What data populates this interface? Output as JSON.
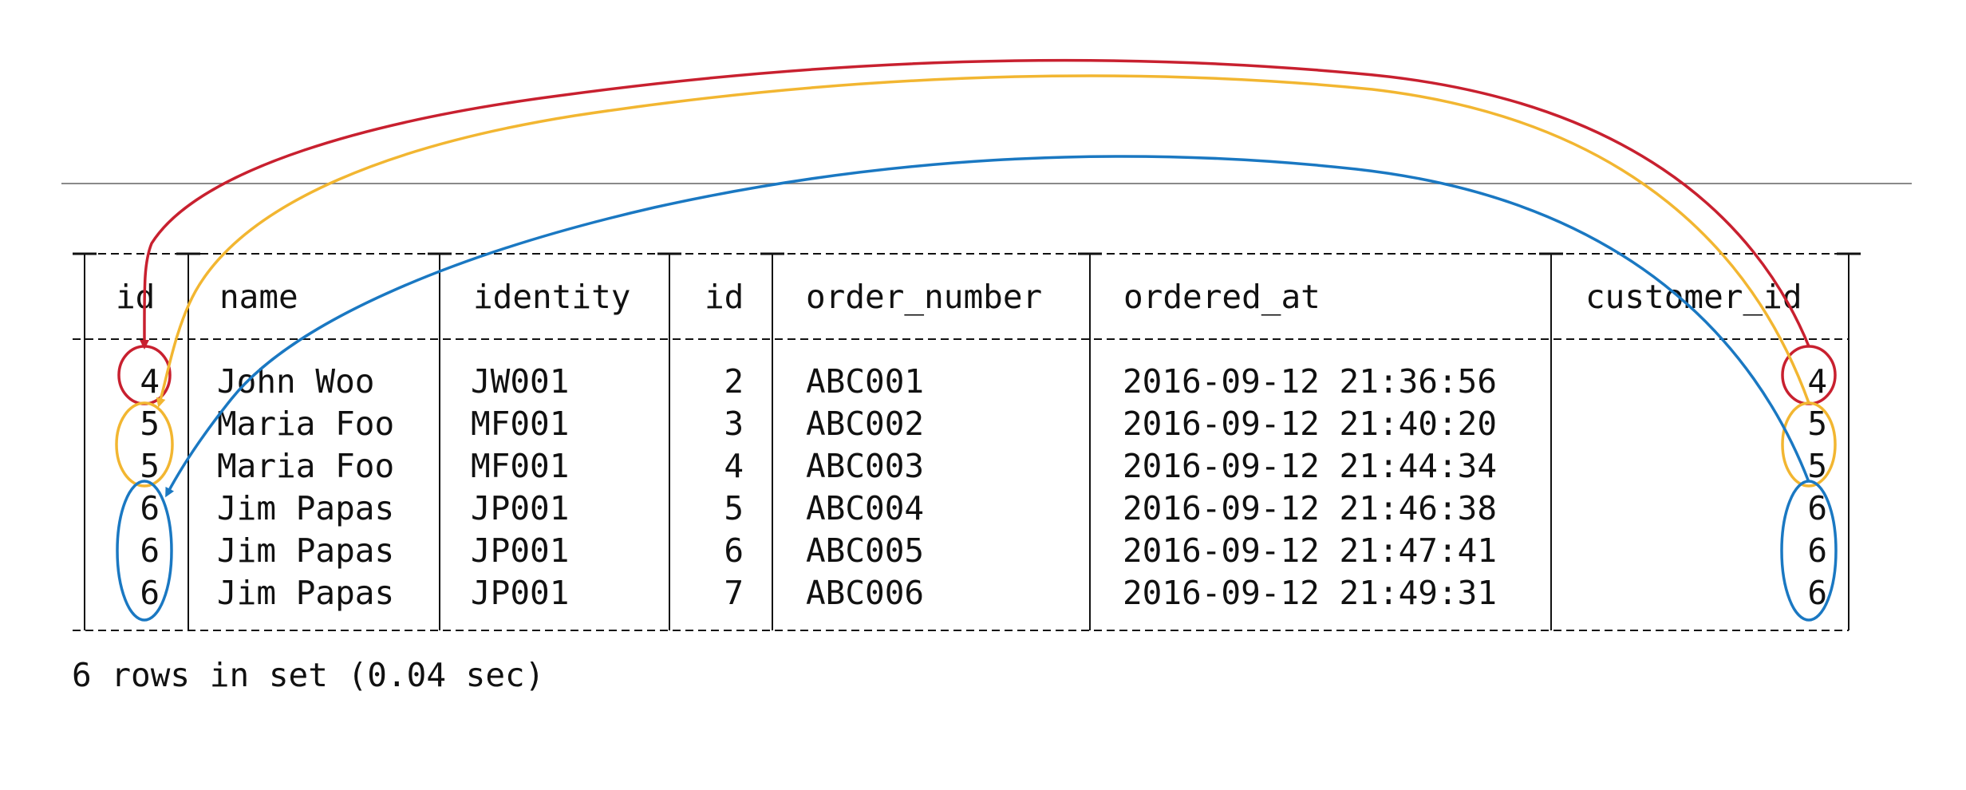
{
  "table": {
    "columns": [
      "id",
      "name",
      "identity",
      "id",
      "order_number",
      "ordered_at",
      "customer_id"
    ],
    "rows": [
      [
        "4",
        "John Woo",
        "JW001",
        "2",
        "ABC001",
        "2016-09-12 21:36:56",
        "4"
      ],
      [
        "5",
        "Maria Foo",
        "MF001",
        "3",
        "ABC002",
        "2016-09-12 21:40:20",
        "5"
      ],
      [
        "5",
        "Maria Foo",
        "MF001",
        "4",
        "ABC003",
        "2016-09-12 21:44:34",
        "5"
      ],
      [
        "6",
        "Jim Papas",
        "JP001",
        "5",
        "ABC004",
        "2016-09-12 21:46:38",
        "6"
      ],
      [
        "6",
        "Jim Papas",
        "JP001",
        "6",
        "ABC005",
        "2016-09-12 21:47:41",
        "6"
      ],
      [
        "6",
        "Jim Papas",
        "JP001",
        "7",
        "ABC006",
        "2016-09-12 21:49:31",
        "6"
      ]
    ]
  },
  "status": "6 rows in set (0.04 sec)",
  "colors": {
    "red": "#c8202f",
    "yellow": "#f2b631",
    "blue": "#1a78c2",
    "divider": "#8a8a8a"
  }
}
